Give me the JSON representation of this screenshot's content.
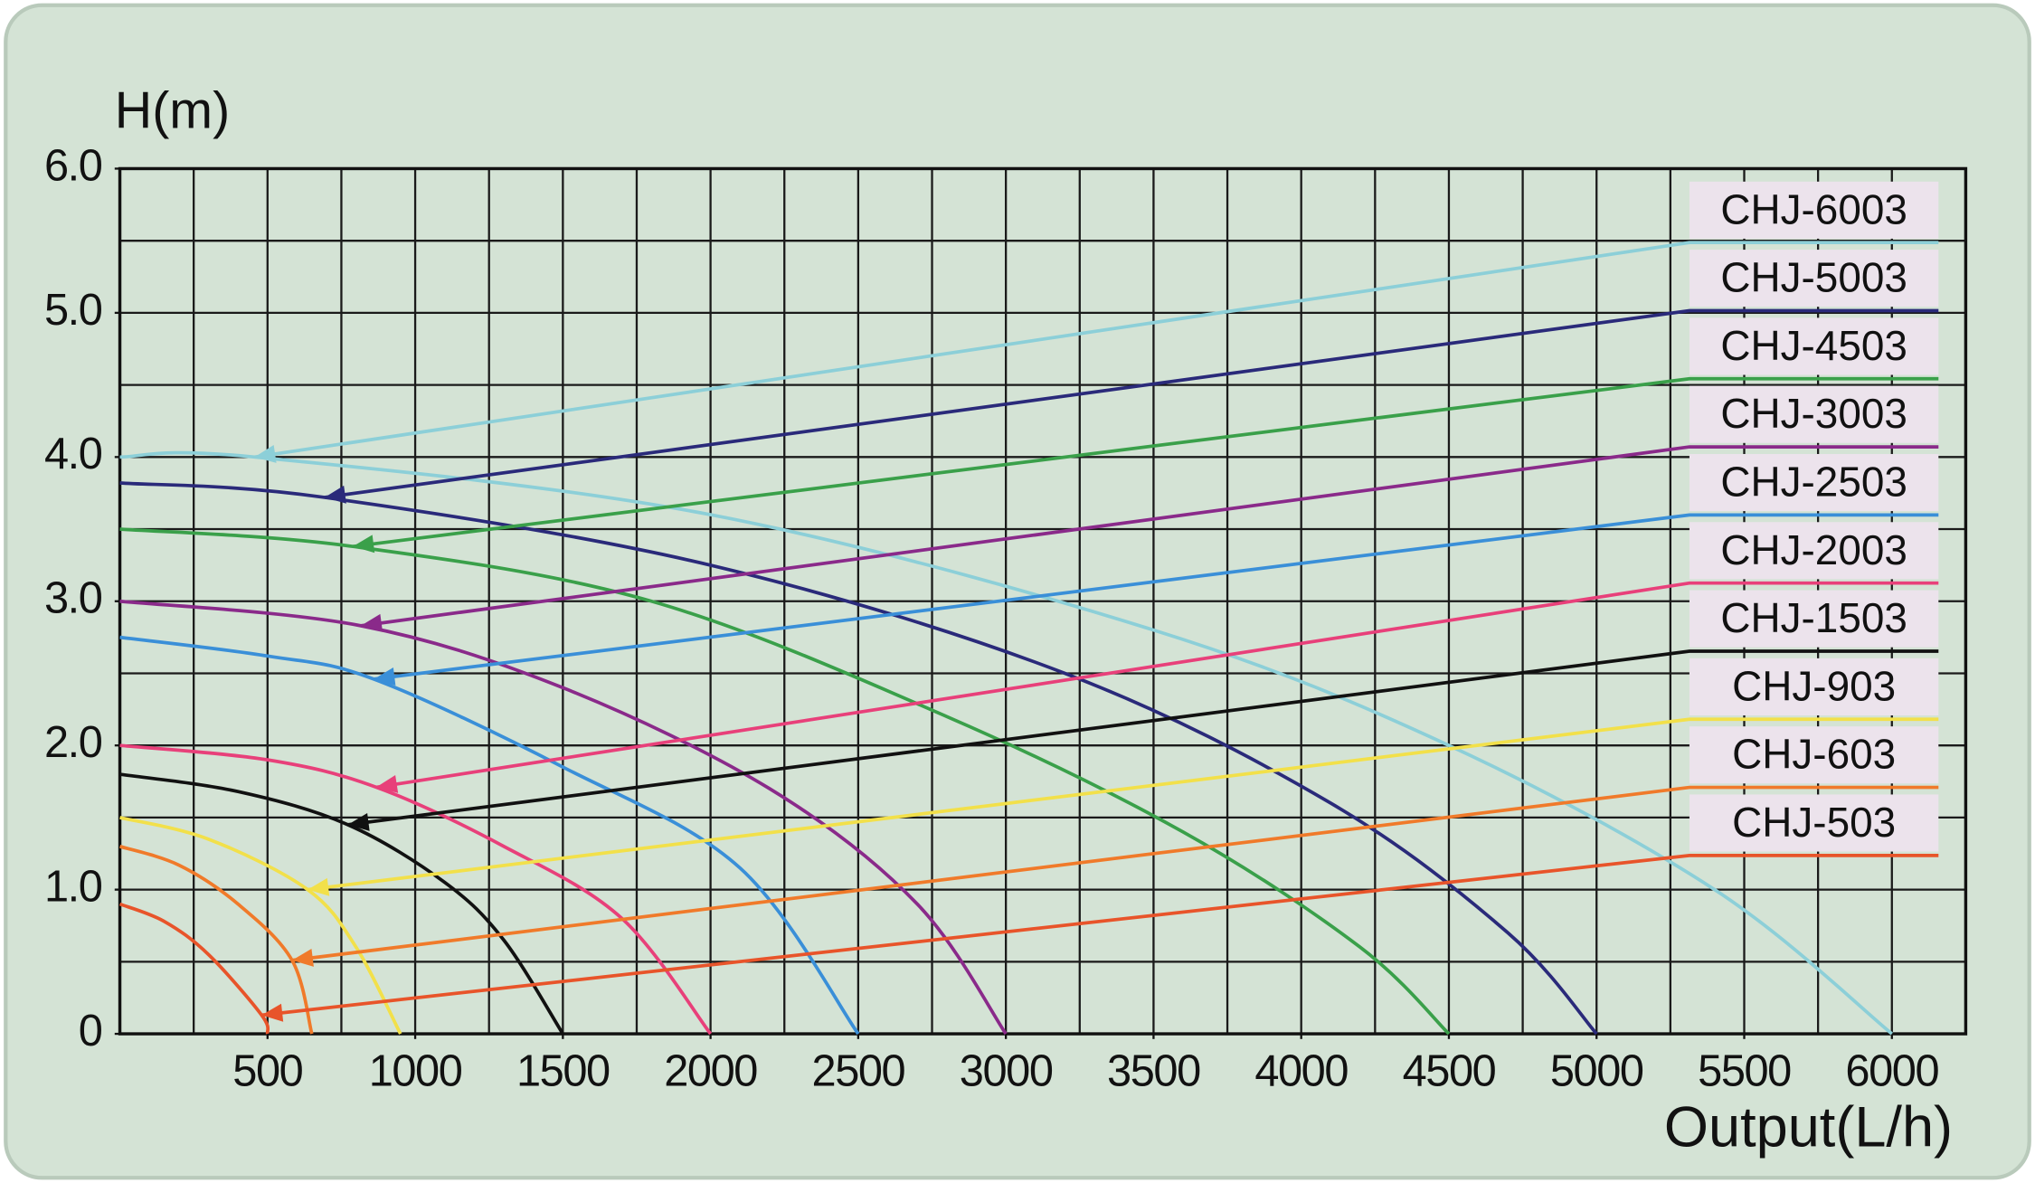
{
  "chart_data": {
    "type": "line",
    "y_label": "H(m)",
    "x_label": "Output(L/h)",
    "xlim": [
      0,
      6250
    ],
    "ylim": [
      0,
      6
    ],
    "xticks": [
      500,
      1000,
      1500,
      2000,
      2500,
      3000,
      3500,
      4000,
      4500,
      5000,
      5500,
      6000
    ],
    "yticks": [
      0,
      {
        "value": 1,
        "label": "1.0"
      },
      {
        "value": 2,
        "label": "2.0"
      },
      {
        "value": 3,
        "label": "3.0"
      },
      {
        "value": 4,
        "label": "4.0"
      },
      {
        "value": 5,
        "label": "5.0"
      },
      {
        "value": 6,
        "label": "6.0"
      }
    ],
    "xgrid": [
      0,
      250,
      500,
      750,
      1000,
      1250,
      1500,
      1750,
      2000,
      2250,
      2500,
      2750,
      3000,
      3250,
      3500,
      3750,
      4000,
      4250,
      4500,
      4750,
      5000,
      5250,
      5500,
      5750,
      6000,
      6250
    ],
    "ygrid": [
      0,
      0.5,
      1,
      1.5,
      2,
      2.5,
      3,
      3.5,
      4,
      4.5,
      5,
      5.5,
      6
    ],
    "grid": true,
    "legend": "right",
    "series": [
      {
        "name": "CHJ-6003",
        "color": "#8ccfd8",
        "x": [
          0,
          456,
          2000,
          3500,
          4500,
          5400,
          6000
        ],
        "values": [
          4.0,
          4.0,
          3.6,
          2.8,
          2.0,
          1.0,
          0
        ]
      },
      {
        "name": "CHJ-5003",
        "color": "#2a2a7a",
        "x": [
          0,
          693,
          2000,
          3200,
          4100,
          4700,
          5000
        ],
        "values": [
          3.82,
          3.72,
          3.25,
          2.5,
          1.6,
          0.7,
          0
        ]
      },
      {
        "name": "CHJ-4503",
        "color": "#3aa04a",
        "x": [
          0,
          789,
          1800,
          2800,
          3600,
          4200,
          4500
        ],
        "values": [
          3.5,
          3.38,
          3.0,
          2.2,
          1.4,
          0.6,
          0
        ]
      },
      {
        "name": "CHJ-3003",
        "color": "#8a2a8a",
        "x": [
          0,
          816,
          1500,
          2200,
          2700,
          3000
        ],
        "values": [
          3.0,
          2.83,
          2.4,
          1.7,
          0.9,
          0
        ]
      },
      {
        "name": "CHJ-2503",
        "color": "#3a8fd8",
        "x": [
          0,
          500,
          860,
          1500,
          2100,
          2500
        ],
        "values": [
          2.75,
          2.62,
          2.46,
          1.85,
          1.15,
          0
        ]
      },
      {
        "name": "CHJ-2003",
        "color": "#e8407a",
        "x": [
          0,
          500,
          868,
          1300,
          1700,
          2000
        ],
        "values": [
          2.0,
          1.9,
          1.71,
          1.3,
          0.8,
          0
        ]
      },
      {
        "name": "CHJ-1503",
        "color": "#111111",
        "x": [
          0,
          400,
          772,
          1100,
          1300,
          1500
        ],
        "values": [
          1.8,
          1.68,
          1.45,
          1.05,
          0.65,
          0
        ]
      },
      {
        "name": "CHJ-903",
        "color": "#f2e04a",
        "x": [
          0,
          300,
          636,
          800,
          950
        ],
        "values": [
          1.5,
          1.35,
          1.0,
          0.6,
          0
        ]
      },
      {
        "name": "CHJ-603",
        "color": "#f07a2a",
        "x": [
          0,
          200,
          400,
          583,
          650
        ],
        "values": [
          1.3,
          1.17,
          0.9,
          0.51,
          0
        ]
      },
      {
        "name": "CHJ-503",
        "color": "#e8542a",
        "x": [
          0,
          150,
          300,
          480,
          500
        ],
        "values": [
          0.9,
          0.78,
          0.55,
          0.13,
          0
        ]
      }
    ]
  }
}
